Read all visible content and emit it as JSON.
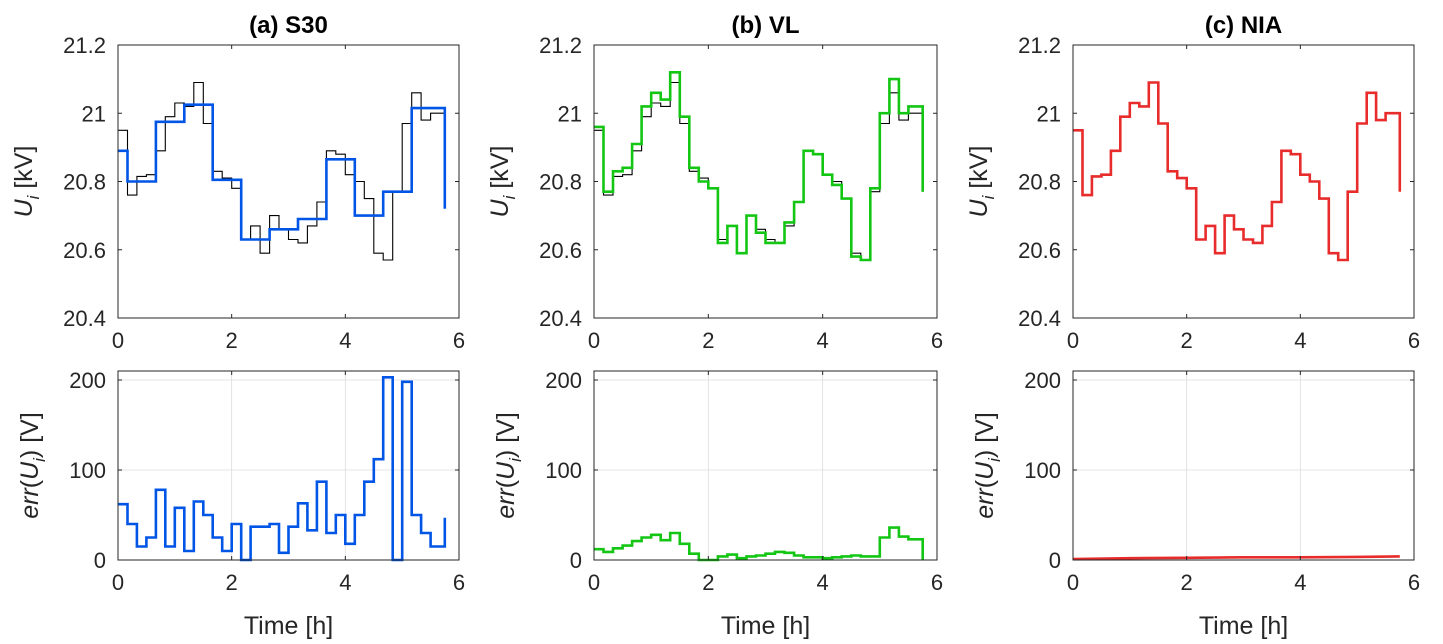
{
  "colors": {
    "reference": "#000000",
    "S30": "#0055e6",
    "VL": "#13c613",
    "NIA": "#e82b2b"
  },
  "chart_data": [
    {
      "type": "line",
      "panel": "top-left",
      "title": "(a) S30",
      "xlabel": "",
      "ylabel": "U_i [kV]",
      "xlim": [
        0,
        6
      ],
      "ylim": [
        20.4,
        21.2
      ],
      "xticks": [
        "0",
        "2",
        "4",
        "6"
      ],
      "yticks": [
        "20.4",
        "20.6",
        "20.8",
        "21",
        "21.2"
      ],
      "grid": false,
      "series": [
        {
          "color": "#000000",
          "step": true,
          "x": [
            0,
            0.167,
            0.333,
            0.5,
            0.667,
            0.833,
            1,
            1.167,
            1.333,
            1.5,
            1.667,
            1.833,
            2,
            2.167,
            2.333,
            2.5,
            2.667,
            2.833,
            3,
            3.167,
            3.333,
            3.5,
            3.667,
            3.833,
            4,
            4.167,
            4.333,
            4.5,
            4.667,
            4.833,
            5,
            5.167,
            5.333,
            5.5,
            5.75
          ],
          "y": [
            20.95,
            20.76,
            20.815,
            20.82,
            20.89,
            20.99,
            21.03,
            21.02,
            21.09,
            20.97,
            20.83,
            20.81,
            20.78,
            20.63,
            20.67,
            20.59,
            20.7,
            20.66,
            20.63,
            20.62,
            20.67,
            20.74,
            20.89,
            20.88,
            20.82,
            20.8,
            20.75,
            20.59,
            20.57,
            20.77,
            20.97,
            21.06,
            20.98,
            21.0,
            20.77
          ]
        },
        {
          "color": "#0055e6",
          "step": true,
          "x": [
            0,
            0.167,
            0.667,
            1.167,
            1.667,
            2.167,
            2.667,
            3.167,
            3.667,
            4.167,
            4.667,
            5.167,
            5.75
          ],
          "y": [
            20.89,
            20.8,
            20.975,
            21.025,
            20.805,
            20.63,
            20.66,
            20.69,
            20.865,
            20.7,
            20.77,
            21.015,
            20.72
          ]
        }
      ]
    },
    {
      "type": "line",
      "panel": "top-middle",
      "title": "(b) VL",
      "xlabel": "",
      "ylabel": "U_i [kV]",
      "xlim": [
        0,
        6
      ],
      "ylim": [
        20.4,
        21.2
      ],
      "xticks": [
        "0",
        "2",
        "4",
        "6"
      ],
      "yticks": [
        "20.4",
        "20.6",
        "20.8",
        "21",
        "21.2"
      ],
      "grid": false,
      "series": [
        {
          "color": "#000000",
          "step": true,
          "x": [
            0,
            0.167,
            0.333,
            0.5,
            0.667,
            0.833,
            1,
            1.167,
            1.333,
            1.5,
            1.667,
            1.833,
            2,
            2.167,
            2.333,
            2.5,
            2.667,
            2.833,
            3,
            3.167,
            3.333,
            3.5,
            3.667,
            3.833,
            4,
            4.167,
            4.333,
            4.5,
            4.667,
            4.833,
            5,
            5.167,
            5.333,
            5.5,
            5.75
          ],
          "y": [
            20.95,
            20.76,
            20.815,
            20.82,
            20.89,
            20.99,
            21.03,
            21.02,
            21.09,
            20.97,
            20.83,
            20.81,
            20.78,
            20.63,
            20.67,
            20.59,
            20.7,
            20.66,
            20.63,
            20.62,
            20.67,
            20.74,
            20.89,
            20.88,
            20.82,
            20.8,
            20.75,
            20.59,
            20.57,
            20.77,
            20.97,
            21.06,
            20.98,
            21.0,
            20.77
          ]
        },
        {
          "color": "#13c613",
          "step": true,
          "x": [
            0,
            0.167,
            0.333,
            0.5,
            0.667,
            0.833,
            1,
            1.167,
            1.333,
            1.5,
            1.667,
            1.833,
            2,
            2.167,
            2.333,
            2.5,
            2.667,
            2.833,
            3,
            3.167,
            3.333,
            3.5,
            3.667,
            3.833,
            4,
            4.167,
            4.333,
            4.5,
            4.667,
            4.833,
            5,
            5.167,
            5.333,
            5.5,
            5.75
          ],
          "y": [
            20.96,
            20.77,
            20.83,
            20.84,
            20.91,
            21.02,
            21.06,
            21.04,
            21.12,
            20.99,
            20.84,
            20.8,
            20.78,
            20.62,
            20.67,
            20.59,
            20.7,
            20.65,
            20.62,
            20.62,
            20.68,
            20.74,
            20.89,
            20.88,
            20.82,
            20.79,
            20.75,
            20.58,
            20.57,
            20.78,
            21.0,
            21.1,
            21.0,
            21.02,
            20.77
          ]
        }
      ]
    },
    {
      "type": "line",
      "panel": "top-right",
      "title": "(c) NIA",
      "xlabel": "",
      "ylabel": "U_i [kV]",
      "xlim": [
        0,
        6
      ],
      "ylim": [
        20.4,
        21.2
      ],
      "xticks": [
        "0",
        "2",
        "4",
        "6"
      ],
      "yticks": [
        "20.4",
        "20.6",
        "20.8",
        "21",
        "21.2"
      ],
      "grid": false,
      "series": [
        {
          "color": "#e82b2b",
          "step": true,
          "x": [
            0,
            0.167,
            0.333,
            0.5,
            0.667,
            0.833,
            1,
            1.167,
            1.333,
            1.5,
            1.667,
            1.833,
            2,
            2.167,
            2.333,
            2.5,
            2.667,
            2.833,
            3,
            3.167,
            3.333,
            3.5,
            3.667,
            3.833,
            4,
            4.167,
            4.333,
            4.5,
            4.667,
            4.833,
            5,
            5.167,
            5.333,
            5.5,
            5.75
          ],
          "y": [
            20.95,
            20.76,
            20.815,
            20.82,
            20.89,
            20.99,
            21.03,
            21.02,
            21.09,
            20.97,
            20.83,
            20.81,
            20.78,
            20.63,
            20.67,
            20.59,
            20.7,
            20.66,
            20.63,
            20.62,
            20.67,
            20.74,
            20.89,
            20.88,
            20.82,
            20.8,
            20.75,
            20.59,
            20.57,
            20.77,
            20.97,
            21.06,
            20.98,
            21.0,
            20.77
          ]
        }
      ]
    },
    {
      "type": "line",
      "panel": "bottom-left",
      "title": "",
      "xlabel": "Time [h]",
      "ylabel": "err(U_i) [V]",
      "xlim": [
        0,
        6
      ],
      "ylim": [
        0,
        210
      ],
      "xticks": [
        "0",
        "2",
        "4",
        "6"
      ],
      "yticks": [
        "0",
        "100",
        "200"
      ],
      "grid": true,
      "series": [
        {
          "color": "#0055e6",
          "step": true,
          "x": [
            0,
            0.167,
            0.333,
            0.5,
            0.667,
            0.833,
            1,
            1.167,
            1.333,
            1.5,
            1.667,
            1.833,
            2,
            2.167,
            2.333,
            2.5,
            2.667,
            2.833,
            3,
            3.167,
            3.333,
            3.5,
            3.667,
            3.833,
            4,
            4.167,
            4.333,
            4.5,
            4.667,
            4.833,
            5,
            5.167,
            5.333,
            5.5,
            5.75
          ],
          "y": [
            62,
            40,
            15,
            25,
            78,
            15,
            58,
            10,
            65,
            50,
            25,
            10,
            40,
            0,
            37,
            37,
            40,
            8,
            37,
            63,
            33,
            87,
            30,
            50,
            18,
            50,
            87,
            112,
            203,
            0,
            198,
            50,
            30,
            15,
            47
          ]
        }
      ]
    },
    {
      "type": "line",
      "panel": "bottom-middle",
      "title": "",
      "xlabel": "Time [h]",
      "ylabel": "err(U_i) [V]",
      "xlim": [
        0,
        6
      ],
      "ylim": [
        0,
        210
      ],
      "xticks": [
        "0",
        "2",
        "4",
        "6"
      ],
      "yticks": [
        "0",
        "100",
        "200"
      ],
      "grid": true,
      "series": [
        {
          "color": "#13c613",
          "step": true,
          "x": [
            0,
            0.167,
            0.333,
            0.5,
            0.667,
            0.833,
            1,
            1.167,
            1.333,
            1.5,
            1.667,
            1.833,
            2,
            2.167,
            2.333,
            2.5,
            2.667,
            2.833,
            3,
            3.167,
            3.333,
            3.5,
            3.667,
            3.833,
            4,
            4.167,
            4.333,
            4.5,
            4.667,
            4.833,
            5,
            5.167,
            5.333,
            5.5,
            5.75
          ],
          "y": [
            12,
            9,
            13,
            16,
            21,
            25,
            28,
            22,
            30,
            18,
            7,
            0,
            0,
            4,
            6,
            2,
            4,
            5,
            7,
            9,
            8,
            5,
            3,
            3,
            2,
            3,
            4,
            5,
            4,
            4,
            25,
            36,
            26,
            23,
            0
          ]
        }
      ]
    },
    {
      "type": "line",
      "panel": "bottom-right",
      "title": "",
      "xlabel": "Time [h]",
      "ylabel": "err(U_i) [V]",
      "xlim": [
        0,
        6
      ],
      "ylim": [
        0,
        210
      ],
      "xticks": [
        "0",
        "2",
        "4",
        "6"
      ],
      "yticks": [
        "0",
        "100",
        "200"
      ],
      "grid": true,
      "series": [
        {
          "color": "#e82b2b",
          "step": false,
          "x": [
            0,
            1,
            2,
            3,
            4,
            5,
            5.75
          ],
          "y": [
            1,
            2,
            2.5,
            3,
            3,
            3.5,
            4
          ]
        }
      ]
    }
  ]
}
